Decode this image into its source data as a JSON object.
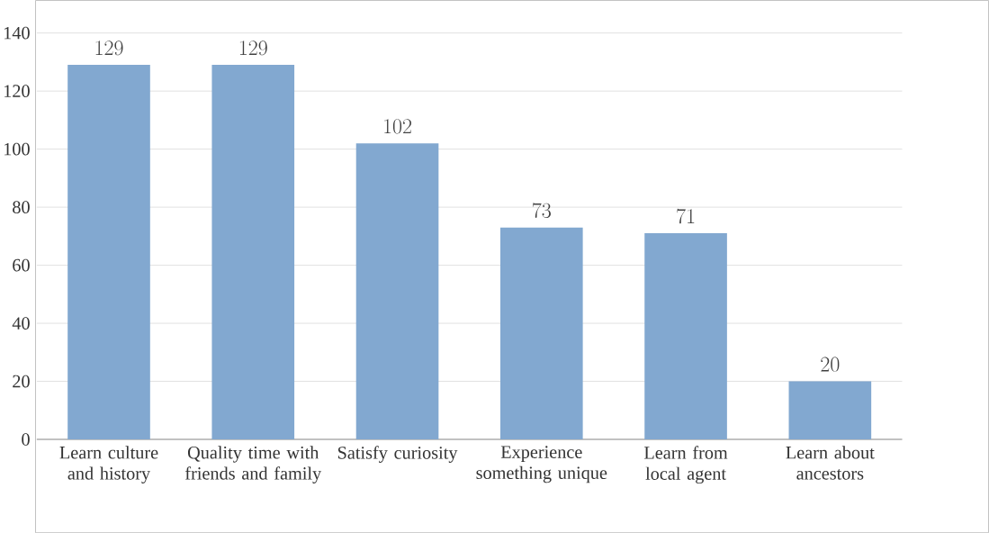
{
  "chart_data": {
    "type": "bar",
    "categories": [
      "Learn culture and history",
      "Quality time with friends and family",
      "Satisfy curiosity",
      "Experience something unique",
      "Learn from local agent",
      "Learn about ancestors"
    ],
    "values": [
      129,
      129,
      102,
      73,
      71,
      20
    ],
    "color": "#82a8d0",
    "ylim": [
      0,
      140
    ],
    "yticks": [
      0,
      20,
      40,
      60,
      80,
      100,
      120,
      140
    ],
    "grid": "y",
    "data_labels": true
  }
}
